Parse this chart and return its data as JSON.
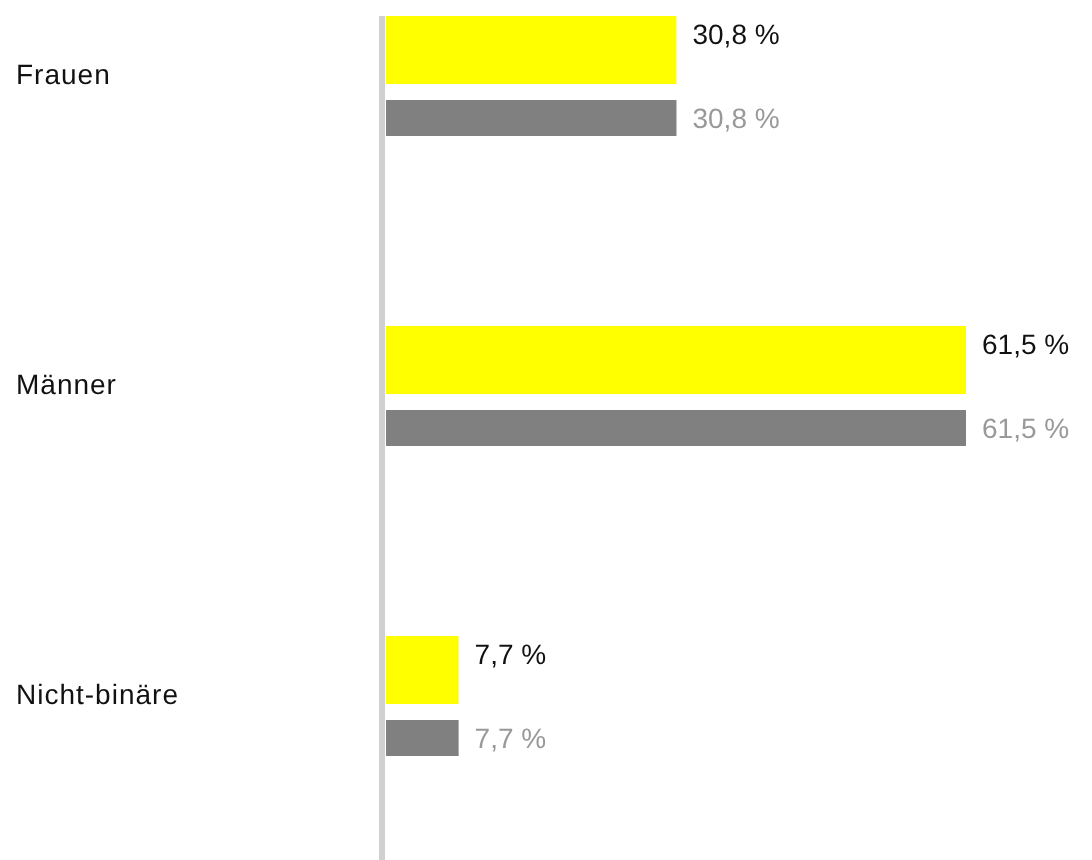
{
  "chart_data": {
    "type": "bar",
    "orientation": "horizontal",
    "categories": [
      "Frauen",
      "Männer",
      "Nicht-binäre"
    ],
    "series": [
      {
        "color": "#ffff00",
        "values": [
          30.8,
          61.5,
          7.7
        ],
        "value_labels": [
          "30,8 %",
          "61,5 %",
          "7,7 %"
        ]
      },
      {
        "color": "#808080",
        "values": [
          30.8,
          61.5,
          7.7
        ],
        "value_labels": [
          "30,8 %",
          "61,5 %",
          "7,7 %"
        ]
      }
    ],
    "grid": false
  }
}
